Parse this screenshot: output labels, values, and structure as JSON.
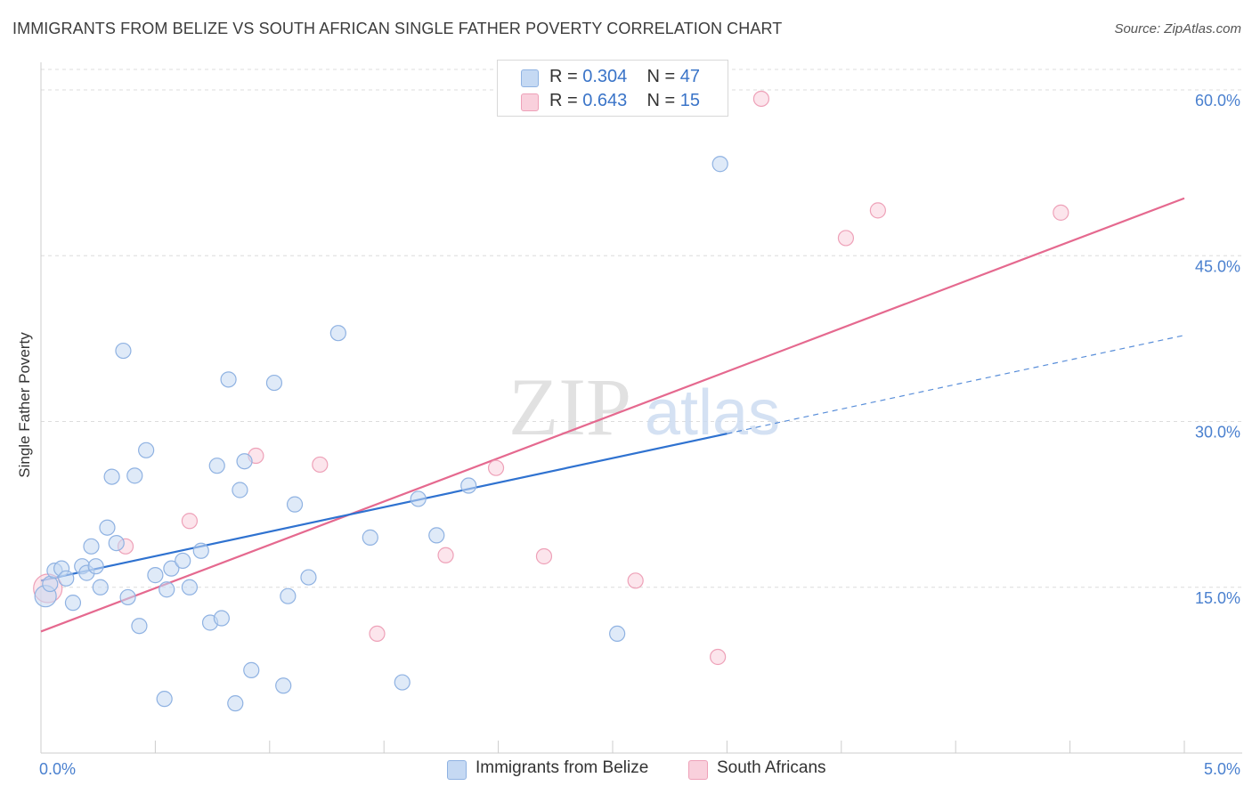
{
  "title": "IMMIGRANTS FROM BELIZE VS SOUTH AFRICAN SINGLE FATHER POVERTY CORRELATION CHART",
  "source": "Source: ZipAtlas.com",
  "watermark": {
    "zip": "ZIP",
    "atlas": "atlas"
  },
  "legend": {
    "r_label": "R =",
    "n_label": "N =",
    "rows": [
      {
        "r": "0.304",
        "n": "47"
      },
      {
        "r": "0.643",
        "n": "15"
      }
    ]
  },
  "colors": {
    "blue_fill": "#c5d9f3",
    "blue_stroke": "#8fb2e2",
    "blue_line": "#2f72d0",
    "pink_fill": "#f9d0dc",
    "pink_stroke": "#eea1b8",
    "pink_line": "#e5698f",
    "tick_label": "#4a80cf",
    "grid": "#dcdcdc"
  },
  "chart_data": {
    "type": "scatter",
    "title": "IMMIGRANTS FROM BELIZE VS SOUTH AFRICAN SINGLE FATHER POVERTY CORRELATION CHART",
    "xlabel": "",
    "ylabel": "Single Father Poverty",
    "xlim": [
      0,
      5.0
    ],
    "ylim": [
      0,
      62.5
    ],
    "x_tick_labels": [
      "0.0%",
      "5.0%"
    ],
    "y_ticks": [
      15,
      30,
      45,
      60
    ],
    "y_tick_labels": [
      "15.0%",
      "30.0%",
      "45.0%",
      "60.0%"
    ],
    "grid": true,
    "legend_position": "top-center",
    "series": [
      {
        "name": "Immigrants from Belize",
        "r": 0.304,
        "n": 47,
        "points": [
          [
            0.02,
            14.2
          ],
          [
            0.04,
            15.3
          ],
          [
            0.06,
            16.5
          ],
          [
            0.09,
            16.7
          ],
          [
            0.11,
            15.8
          ],
          [
            0.14,
            13.6
          ],
          [
            0.18,
            16.9
          ],
          [
            0.2,
            16.3
          ],
          [
            0.22,
            18.7
          ],
          [
            0.24,
            16.9
          ],
          [
            0.26,
            15.0
          ],
          [
            0.29,
            20.4
          ],
          [
            0.31,
            25.0
          ],
          [
            0.33,
            19.0
          ],
          [
            0.36,
            36.4
          ],
          [
            0.38,
            14.1
          ],
          [
            0.41,
            25.1
          ],
          [
            0.43,
            11.5
          ],
          [
            0.46,
            27.4
          ],
          [
            0.5,
            16.1
          ],
          [
            0.54,
            4.9
          ],
          [
            0.55,
            14.8
          ],
          [
            0.57,
            16.7
          ],
          [
            0.62,
            17.4
          ],
          [
            0.65,
            15.0
          ],
          [
            0.7,
            18.3
          ],
          [
            0.74,
            11.8
          ],
          [
            0.77,
            26.0
          ],
          [
            0.79,
            12.2
          ],
          [
            0.82,
            33.8
          ],
          [
            0.85,
            4.5
          ],
          [
            0.87,
            23.8
          ],
          [
            0.89,
            26.4
          ],
          [
            0.92,
            7.5
          ],
          [
            1.02,
            33.5
          ],
          [
            1.06,
            6.1
          ],
          [
            1.08,
            14.2
          ],
          [
            1.11,
            22.5
          ],
          [
            1.17,
            15.9
          ],
          [
            1.3,
            38.0
          ],
          [
            1.44,
            19.5
          ],
          [
            1.58,
            6.4
          ],
          [
            1.65,
            23.0
          ],
          [
            1.73,
            19.7
          ],
          [
            1.87,
            24.2
          ],
          [
            2.52,
            10.8
          ],
          [
            2.97,
            53.3
          ]
        ],
        "trend": {
          "x": [
            0.0,
            3.0
          ],
          "y": [
            15.6,
            28.9
          ]
        },
        "trend_extension": {
          "x": [
            3.0,
            5.0
          ],
          "y": [
            28.9,
            37.8
          ]
        }
      },
      {
        "name": "South Africans",
        "r": 0.643,
        "n": 15,
        "points": [
          [
            0.03,
            14.9
          ],
          [
            0.37,
            18.7
          ],
          [
            0.65,
            21.0
          ],
          [
            0.94,
            26.9
          ],
          [
            1.22,
            26.1
          ],
          [
            1.47,
            10.8
          ],
          [
            1.77,
            17.9
          ],
          [
            1.99,
            25.8
          ],
          [
            2.2,
            17.8
          ],
          [
            2.6,
            15.6
          ],
          [
            2.96,
            8.7
          ],
          [
            3.15,
            59.2
          ],
          [
            3.52,
            46.6
          ],
          [
            3.66,
            49.1
          ],
          [
            4.46,
            48.9
          ]
        ],
        "trend": {
          "x": [
            0.0,
            5.0
          ],
          "y": [
            11.0,
            50.2
          ]
        }
      }
    ]
  },
  "bottom_legend": [
    "Immigrants from Belize",
    "South Africans"
  ]
}
